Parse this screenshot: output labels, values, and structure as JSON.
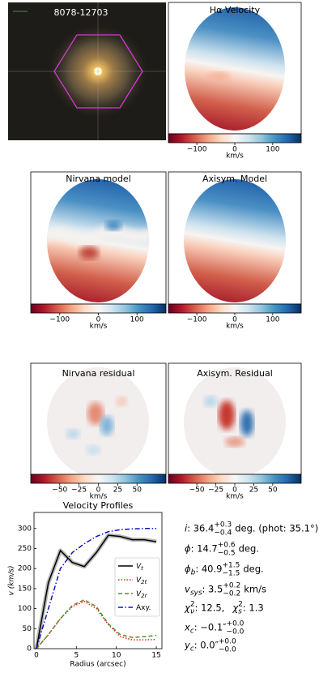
{
  "image": {
    "label": "8078-12703"
  },
  "chart_data": [
    {
      "type": "map",
      "title": "Hα Velocity",
      "clim": [
        -175,
        175
      ],
      "cticks": [
        {
          "value": -100,
          "label": "−100"
        },
        0,
        100
      ],
      "colorbar_label": "km/s"
    },
    {
      "type": "map",
      "title": "Nirvana model",
      "clim": [
        -175,
        175
      ],
      "cticks": [
        {
          "value": -100,
          "label": "−100"
        },
        0,
        100
      ],
      "colorbar_label": "km/s"
    },
    {
      "type": "map",
      "title": "Axisym. Model",
      "clim": [
        -175,
        175
      ],
      "cticks": [
        {
          "value": -100,
          "label": "−100"
        },
        0,
        100
      ],
      "colorbar_label": "km/s"
    },
    {
      "type": "map",
      "title": "Nirvana residual",
      "clim": [
        -87.5,
        87.5
      ],
      "cticks": [
        {
          "value": -50,
          "label": "−50"
        },
        {
          "value": -25,
          "label": "−25"
        },
        0,
        25,
        50
      ],
      "colorbar_label": "km/s"
    },
    {
      "type": "map",
      "title": "Axisym. Residual",
      "clim": [
        -87.5,
        87.5
      ],
      "cticks": [
        {
          "value": -50,
          "label": "−50"
        },
        {
          "value": -25,
          "label": "−25"
        },
        0,
        25,
        50
      ],
      "colorbar_label": "km/s"
    },
    {
      "type": "line",
      "title": "Velocity Profiles",
      "x_label": "Radius (arcsec)",
      "y_label": "v (km/s)",
      "x": [
        0,
        1.5,
        3,
        4.5,
        6,
        7.5,
        9,
        10.5,
        12,
        13.5,
        15
      ],
      "xlim": [
        -0.3,
        15.7
      ],
      "xticks": [
        0,
        5,
        10,
        15
      ],
      "ylim": [
        0,
        340
      ],
      "yticks": [
        0,
        50,
        100,
        150,
        200,
        250,
        300
      ],
      "series": [
        {
          "name": "V",
          "name_sub": "t",
          "color": "#000000",
          "linestyle": "solid",
          "values": [
            0,
            165,
            245,
            215,
            205,
            240,
            283,
            280,
            272,
            272,
            267
          ]
        },
        {
          "name": "V",
          "name_sub": "2t",
          "color": "#e8271f",
          "linestyle": "dotted",
          "values": [
            0,
            35,
            75,
            105,
            118,
            100,
            60,
            30,
            22,
            22,
            23
          ]
        },
        {
          "name": "V",
          "name_sub": "2r",
          "color": "#5f8a2a",
          "linestyle": "dashed",
          "values": [
            0,
            35,
            75,
            108,
            122,
            105,
            62,
            35,
            28,
            30,
            33
          ]
        },
        {
          "name": "Axy.",
          "color": "#1010c8",
          "linestyle": "dashdot",
          "values": [
            0,
            100,
            200,
            240,
            262,
            280,
            292,
            297,
            299,
            300,
            300
          ]
        }
      ]
    }
  ],
  "parameters": [
    {
      "name": "i",
      "value": ": 36.4",
      "upper": "+0.3",
      "lower": "−0.4",
      "unit": "deg. (phot: 35.1°)"
    },
    {
      "name": "ϕ",
      "value": ": 14.7",
      "upper": "+0.6",
      "lower": "−0.5",
      "unit": "deg."
    },
    {
      "name": "ϕ",
      "name_sub": "b",
      "value": ": 40.9",
      "upper": "+1.5",
      "lower": "−1.5",
      "unit": "deg."
    },
    {
      "name": "v",
      "name_sub": "sys",
      "value": ": 3.5",
      "upper": "+0.2",
      "lower": "−0.2",
      "unit": "km/s"
    },
    {
      "name": "χ",
      "name_sup": "2",
      "name_sub": "ν",
      "value": ": 12.5,"
    },
    {
      "name": "χ",
      "name_sup": "2",
      "name_sub": "s",
      "value": ": 1.3"
    },
    {
      "name": "x",
      "name_sub": "c",
      "value": ": −0.1″",
      "upper": "+0.0",
      "lower": "−0.0"
    },
    {
      "name": "y",
      "name_sub": "c",
      "value": ": 0.0″",
      "upper": "+0.0",
      "lower": "−0.0"
    }
  ]
}
